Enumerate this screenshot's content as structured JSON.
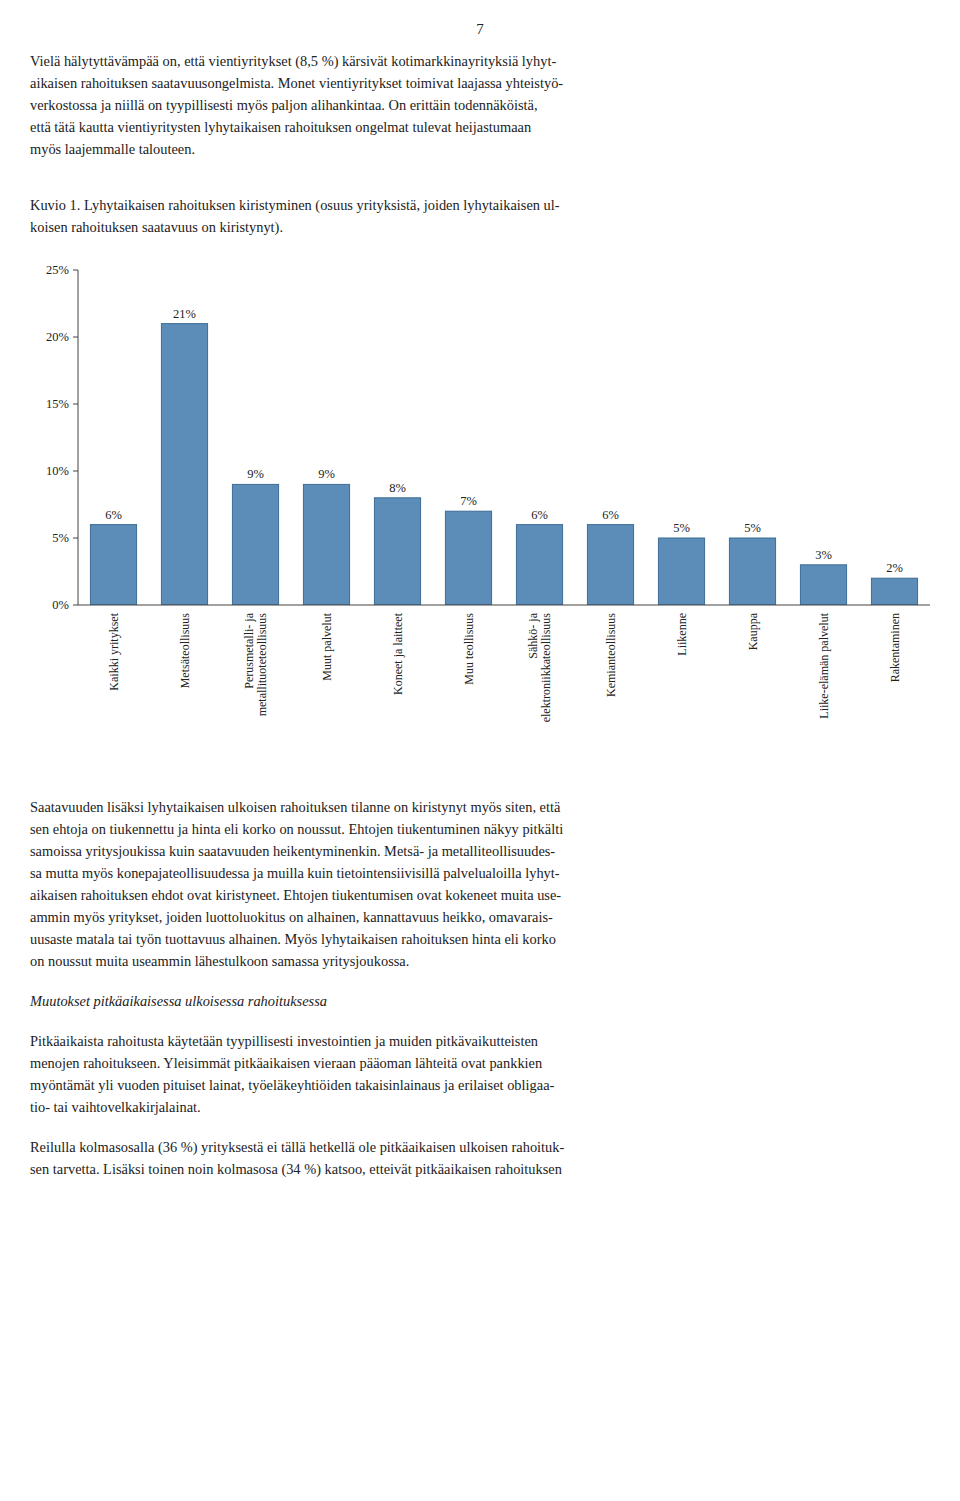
{
  "page": {
    "page_number": "7",
    "intro_lines": [
      "Vielä hälytyttävämpää on, että vientiyritykset (8,5 %) kärsivät kotimarkkinayrityksiä lyhyt-",
      "aikaisen rahoituksen saatavuusongelmista. Monet vientiyritykset toimivat laajassa yhteistyö-",
      "verkostossa ja niillä on tyypillisesti myös paljon alihankintaa. On erittäin todennäköistä,",
      "että tätä kautta vientiyritysten lyhytaikaisen rahoituksen ongelmat tulevat heijastumaan",
      "myös laajemmalle talouteen."
    ],
    "bt1_lines": [
      "Saatavuuden lisäksi lyhytaikaisen ulkoisen rahoituksen tilanne on kiristynyt myös siten, että",
      "sen ehtoja on tiukennettu ja hinta eli korko on noussut. Ehtojen tiukentuminen näkyy pitkälti",
      "samoissa yritysjoukissa kuin saatavuuden heikentyminenkin. Metsä- ja metalliteollisuudes-",
      "sa mutta myös konepajateollisuudessa ja muilla kuin tietointensiivisillä palvelualoilla lyhyt-",
      "aikaisen rahoituksen ehdot ovat kiristyneet. Ehtojen tiukentumisen ovat kokeneet muita use-",
      "ammin myös yritykset, joiden luottoluokitus on alhainen, kannattavuus heikko, omavarais-",
      "uusaste matala tai työn tuottavuus alhainen. Myös lyhytaikaisen rahoituksen hinta eli korko",
      "on noussut muita useammin lähestulkoon samassa yritysjoukossa."
    ],
    "italic_heading": "Muutokset pitkäaikaisessa ulkoisessa rahoituksessa",
    "bt2_lines": [
      "Pitkäaikaista rahoitusta käytetään tyypillisesti investointien ja muiden pitkävaikutteisten",
      "menojen rahoitukseen. Yleisimmät pitkäaikaisen vieraan pääoman lähteitä ovat pankkien",
      "myöntämät yli vuoden pituiset lainat, työeläkeyhtiöiden takaisinlainaus ja erilaiset obligaa-",
      "tio- tai vaihtovelkakirjalainat."
    ],
    "bt3_lines": [
      "Reilulla kolmasosalla (36 %) yrityksestä ei tällä hetkellä ole pitkäaikaisen ulkoisen rahoituk-",
      "sen tarvetta. Lisäksi toinen noin kolmasosa (34 %) katsoo, etteivät pitkäaikaisen rahoituksen"
    ]
  },
  "chart_data": {
    "type": "bar",
    "title": "Kuvio 1. Lyhytaikaisen rahoituksen kiristyminen (osuus yrityksistä, joiden lyhytaikaisen ul-\nkoisen rahoituksen saatavuus on kiristynyt).",
    "categories": [
      "Kaikki yritykset",
      "Metsäteollisuus",
      "Perusmetalli- ja\nmetallituoteteollisuus",
      "Muut palvelut",
      "Koneet ja laitteet",
      "Muu teollisuus",
      "Sähkö- ja\nelektroniikkateollisuus",
      "Kemianteollisuus",
      "Liikenne",
      "Kauppa",
      "Liike-elämän palvelut",
      "Rakentaminen"
    ],
    "values": [
      6,
      21,
      9,
      9,
      8,
      7,
      6,
      6,
      5,
      5,
      3,
      2
    ],
    "value_labels": [
      "6%",
      "21%",
      "9%",
      "9%",
      "8%",
      "7%",
      "6%",
      "6%",
      "5%",
      "5%",
      "3%",
      "2%"
    ],
    "data_labels": true,
    "ylim": [
      0,
      25
    ],
    "yticks": [
      {
        "value": 0,
        "label": "0%"
      },
      {
        "value": 5,
        "label": "5%"
      },
      {
        "value": 10,
        "label": "10%"
      },
      {
        "value": 15,
        "label": "15%"
      },
      {
        "value": 20,
        "label": "20%"
      },
      {
        "value": 25,
        "label": "25%"
      }
    ],
    "grid": false
  }
}
